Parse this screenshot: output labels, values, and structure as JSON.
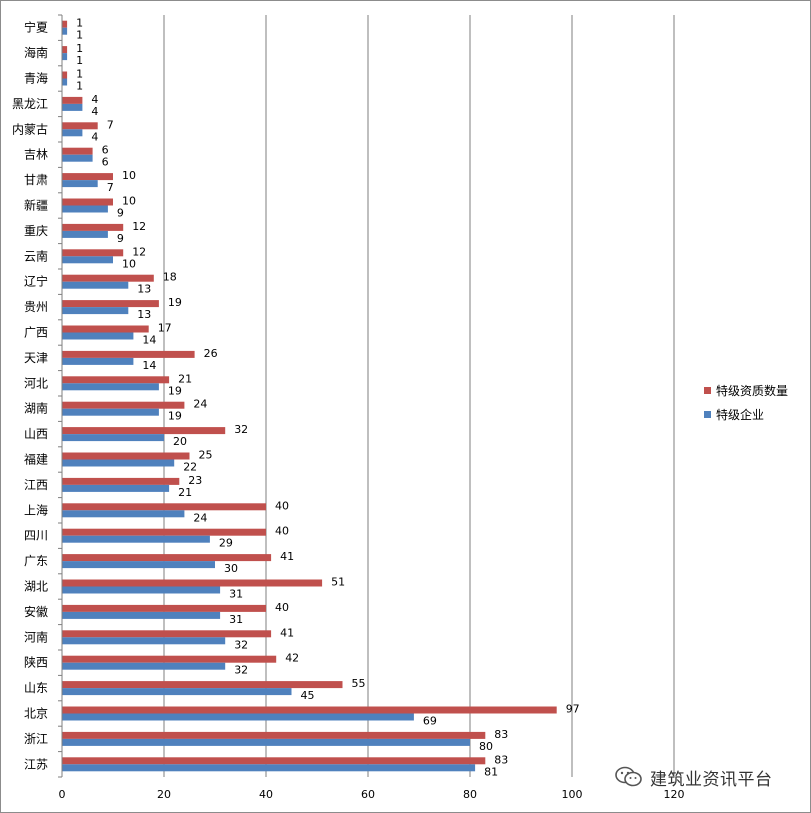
{
  "chart_data": {
    "type": "bar",
    "orientation": "horizontal",
    "categories": [
      "宁夏",
      "海南",
      "青海",
      "黑龙江",
      "内蒙古",
      "吉林",
      "甘肃",
      "新疆",
      "重庆",
      "云南",
      "辽宁",
      "贵州",
      "广西",
      "天津",
      "河北",
      "湖南",
      "山西",
      "福建",
      "江西",
      "上海",
      "四川",
      "广东",
      "湖北",
      "安徽",
      "河南",
      "陕西",
      "山东",
      "北京",
      "浙江",
      "江苏"
    ],
    "series": [
      {
        "name": "特级资质数量",
        "color": "#c0504d",
        "values": [
          1,
          1,
          1,
          4,
          7,
          6,
          10,
          10,
          12,
          12,
          18,
          19,
          17,
          26,
          21,
          24,
          32,
          25,
          23,
          40,
          40,
          41,
          51,
          40,
          41,
          42,
          55,
          97,
          83,
          83
        ]
      },
      {
        "name": "特级企业",
        "color": "#4f81bd",
        "values": [
          1,
          1,
          1,
          4,
          4,
          6,
          7,
          9,
          9,
          10,
          13,
          13,
          14,
          14,
          19,
          19,
          20,
          22,
          21,
          24,
          29,
          30,
          31,
          31,
          32,
          32,
          45,
          69,
          80,
          81
        ]
      }
    ],
    "xlim": [
      0,
      120
    ],
    "xticks": [
      "0",
      "20",
      "40",
      "60",
      "80",
      "100",
      "120"
    ],
    "grid": true,
    "legend_position": "right"
  },
  "watermark": {
    "icon": "wechat-icon",
    "text": "建筑业资讯平台"
  }
}
